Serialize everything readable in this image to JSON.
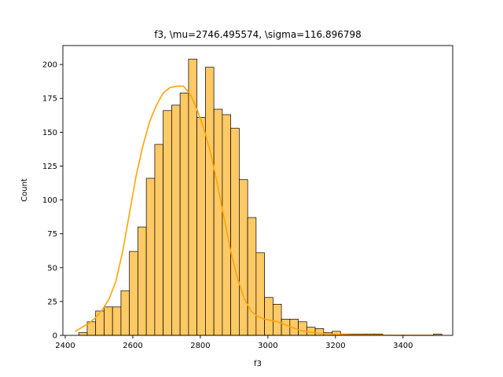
{
  "chart_data": {
    "type": "bar",
    "title": "f3, \\mu=2746.495574, \\sigma=116.896798",
    "xlabel": "f3",
    "ylabel": "Count",
    "xlim": [
      2393,
      3547
    ],
    "ylim": [
      0,
      214
    ],
    "x_ticks": [
      2400,
      2600,
      2800,
      3000,
      3200,
      3400
    ],
    "y_ticks": [
      0,
      25,
      50,
      75,
      100,
      125,
      150,
      175,
      200
    ],
    "grid": false,
    "legend": "none",
    "bar_color": "#ffc966",
    "bar_edge_color": "#000000",
    "kde_color": "#ffa500",
    "bins": {
      "start": 2440,
      "width": 25,
      "counts": [
        2,
        10,
        18,
        21,
        21,
        33,
        62,
        80,
        116,
        141,
        166,
        170,
        179,
        204,
        161,
        198,
        167,
        163,
        153,
        115,
        87,
        61,
        28,
        23,
        12,
        12,
        10,
        6,
        5,
        2,
        3,
        1,
        1,
        1,
        1,
        1,
        0,
        0,
        0,
        0,
        0,
        0,
        1
      ]
    },
    "kde": {
      "x": [
        2430,
        2450,
        2470,
        2490,
        2510,
        2530,
        2550,
        2570,
        2590,
        2610,
        2630,
        2650,
        2670,
        2690,
        2710,
        2730,
        2750,
        2770,
        2790,
        2810,
        2830,
        2850,
        2870,
        2890,
        2910,
        2930,
        2950,
        2970,
        2990,
        3010,
        3030,
        3050,
        3070,
        3090,
        3110,
        3130,
        3150,
        3170,
        3200,
        3250,
        3300,
        3350,
        3400,
        3450,
        3490
      ],
      "y": [
        3,
        6,
        9,
        13,
        19,
        27,
        40,
        62,
        90,
        118,
        140,
        158,
        170,
        179,
        183,
        184,
        184,
        178,
        167,
        153,
        135,
        112,
        87,
        62,
        42,
        27,
        18,
        14,
        12,
        11,
        10,
        8,
        6,
        4,
        3,
        2.2,
        1.6,
        1.1,
        0.7,
        0.4,
        0.25,
        0.15,
        0.1,
        0.1,
        0.1
      ]
    }
  }
}
